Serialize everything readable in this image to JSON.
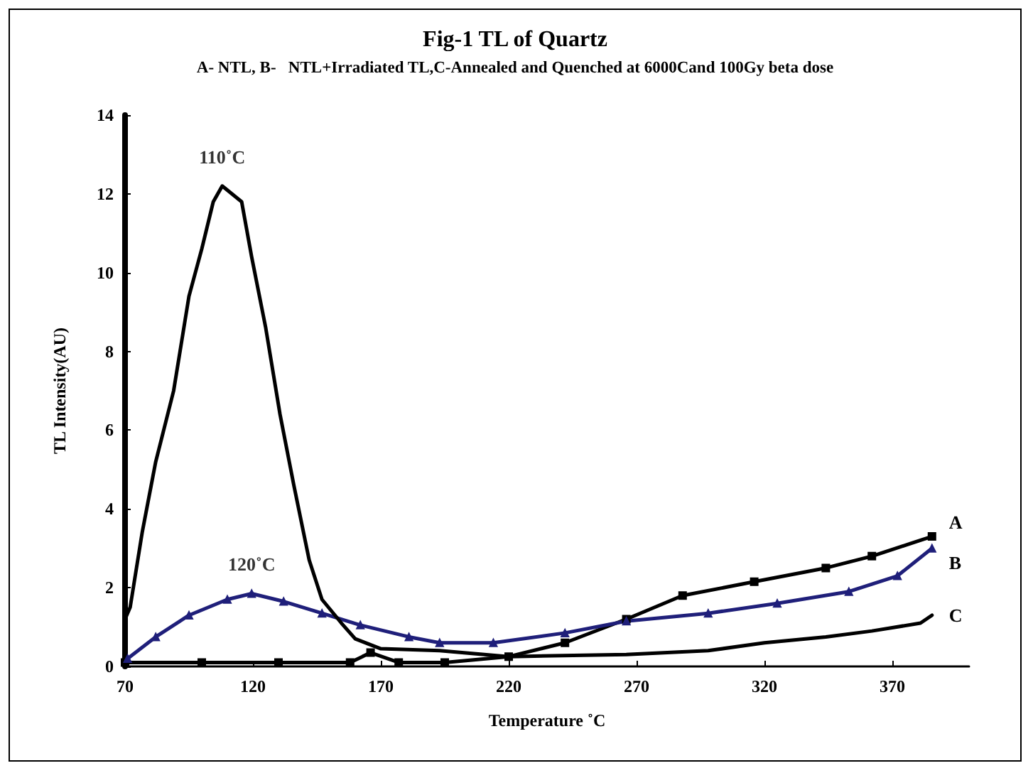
{
  "chart_data": {
    "type": "line",
    "title": "Fig-1 TL of Quartz",
    "subtitle": "A- NTL, B-   NTL+Irradiated TL,C-Annealed and Quenched at 6000Cand 100Gy beta dose",
    "xlabel": "Temperature ˚C",
    "ylabel": "TL Intensity(AU)",
    "xlim": [
      70,
      400
    ],
    "xticks": [
      70,
      120,
      170,
      220,
      270,
      320,
      370
    ],
    "ylim": [
      0,
      14
    ],
    "yticks": [
      0,
      2,
      4,
      6,
      8,
      10,
      12,
      14
    ],
    "grid": false,
    "legend": false,
    "line_style": "solid",
    "annotations": [
      "110˚C",
      "120˚C"
    ],
    "series": [
      {
        "name": "A",
        "color": "#000000",
        "marker": "square",
        "x": [
          70,
          100,
          130,
          158,
          166,
          177,
          195,
          220,
          242,
          266,
          288,
          316,
          344,
          362,
          385.5
        ],
        "values": [
          0.1,
          0.1,
          0.1,
          0.1,
          0.35,
          0.1,
          0.1,
          0.25,
          0.6,
          1.2,
          1.8,
          2.15,
          2.5,
          2.8,
          3.3
        ]
      },
      {
        "name": "B",
        "color": "#1f1f7a",
        "marker": "triangle",
        "x": [
          71,
          82,
          95,
          110,
          119.5,
          132,
          147,
          162,
          181,
          193,
          214,
          242,
          266,
          298,
          325,
          353,
          372,
          385.5
        ],
        "values": [
          0.2,
          0.75,
          1.3,
          1.7,
          1.85,
          1.65,
          1.35,
          1.05,
          0.75,
          0.6,
          0.6,
          0.85,
          1.15,
          1.35,
          1.6,
          1.9,
          2.3,
          3.0
        ]
      },
      {
        "name": "C",
        "color": "#000000",
        "marker": "none",
        "x": [
          70,
          72,
          76.7,
          82,
          89,
          95,
          100,
          104.5,
          108,
          115.6,
          119.5,
          125,
          130.6,
          136,
          142,
          147,
          154.6,
          160,
          170,
          193,
          220,
          266,
          298,
          320,
          344,
          362,
          381,
          385.5
        ],
        "values": [
          1.2,
          1.5,
          3.4,
          5.2,
          7.0,
          9.4,
          10.6,
          11.8,
          12.2,
          11.8,
          10.4,
          8.6,
          6.4,
          4.6,
          2.7,
          1.7,
          1.1,
          0.7,
          0.45,
          0.4,
          0.25,
          0.3,
          0.4,
          0.6,
          0.75,
          0.9,
          1.1,
          1.3
        ]
      }
    ]
  }
}
